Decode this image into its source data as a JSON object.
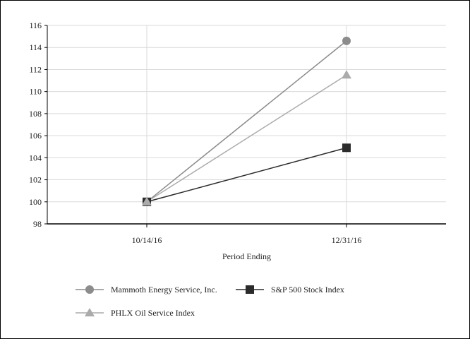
{
  "chart_data": {
    "type": "line",
    "title": "",
    "xlabel": "Period Ending",
    "ylabel": "",
    "categories": [
      "10/14/16",
      "12/31/16"
    ],
    "ylim": [
      98,
      116
    ],
    "yticks": [
      "98",
      "100",
      "102",
      "104",
      "106",
      "108",
      "110",
      "112",
      "114",
      "116"
    ],
    "grid": true,
    "legend_position": "bottom",
    "series": [
      {
        "name": "Mammoth Energy Service, Inc.",
        "values": [
          100.0,
          114.6
        ],
        "marker": "circle",
        "color": "#8c8c8c"
      },
      {
        "name": "S&P 500 Stock Index",
        "values": [
          100.0,
          104.9
        ],
        "marker": "square",
        "color": "#2b2b2b"
      },
      {
        "name": "PHLX Oil Service Index",
        "values": [
          100.0,
          111.5
        ],
        "marker": "triangle",
        "color": "#ababab"
      }
    ]
  }
}
